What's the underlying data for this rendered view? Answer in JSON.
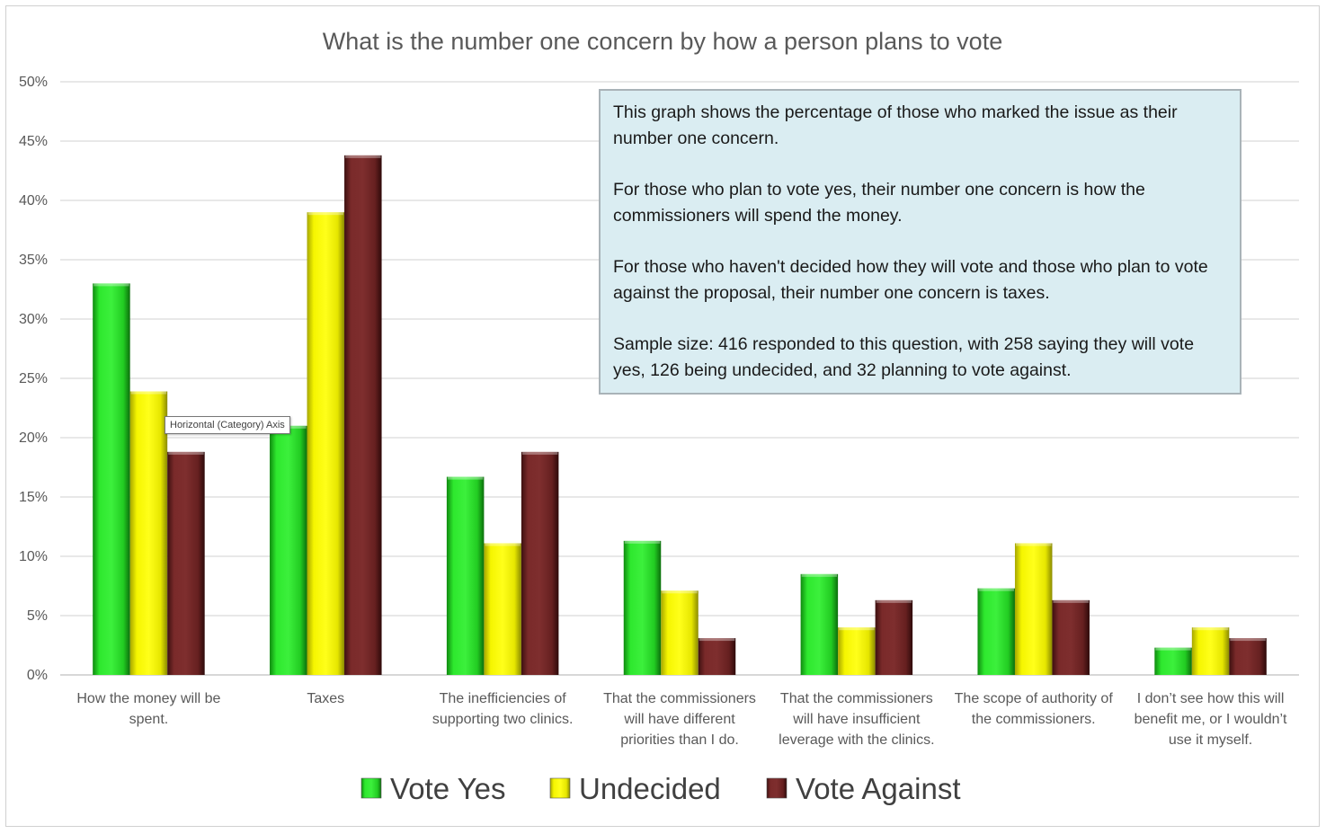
{
  "chart_data": {
    "type": "bar",
    "title": "What is the number one concern by how a person plans to vote",
    "categories": [
      [
        "How the money will be",
        "spent."
      ],
      [
        "Taxes"
      ],
      [
        "The inefficiencies of",
        "supporting two clinics."
      ],
      [
        "That the commissioners",
        "will have different",
        "priorities than I do."
      ],
      [
        "That the commissioners",
        "will have insufficient",
        "leverage with the clinics."
      ],
      [
        "The scope of authority of",
        "the commissioners."
      ],
      [
        "I don’t see how this will",
        "benefit me, or I wouldn’t",
        "use it myself."
      ]
    ],
    "series": [
      {
        "name": "Vote Yes",
        "color": "#22cc22",
        "values": [
          33.0,
          21.0,
          16.7,
          11.3,
          8.5,
          7.3,
          2.3
        ]
      },
      {
        "name": "Undecided",
        "color": "#e8e800",
        "values": [
          23.9,
          39.0,
          11.1,
          7.1,
          4.0,
          11.1,
          4.0
        ]
      },
      {
        "name": "Vote Against",
        "color": "#6b2222",
        "values": [
          18.8,
          43.8,
          18.8,
          3.1,
          6.3,
          6.3,
          3.1
        ]
      }
    ],
    "ylim": [
      0,
      50
    ],
    "yticks": [
      "0%",
      "5%",
      "10%",
      "15%",
      "20%",
      "25%",
      "30%",
      "35%",
      "40%",
      "45%",
      "50%"
    ],
    "grid": true,
    "legend_position": "bottom",
    "xlabel": "",
    "ylabel": ""
  },
  "annotation": {
    "paragraphs": [
      "This graph shows the percentage of those who marked the issue as their number one concern.",
      "For those who plan to vote yes, their number one concern is how the commissioners will spend the money.",
      "For those who haven't decided how they will vote and those who plan to vote against the proposal, their number one concern is taxes.",
      "Sample size: 416 responded to this question, with 258 saying they will vote yes, 126 being undecided, and 32 planning to vote against."
    ]
  },
  "tooltip": {
    "text": "Horizontal (Category) Axis"
  }
}
